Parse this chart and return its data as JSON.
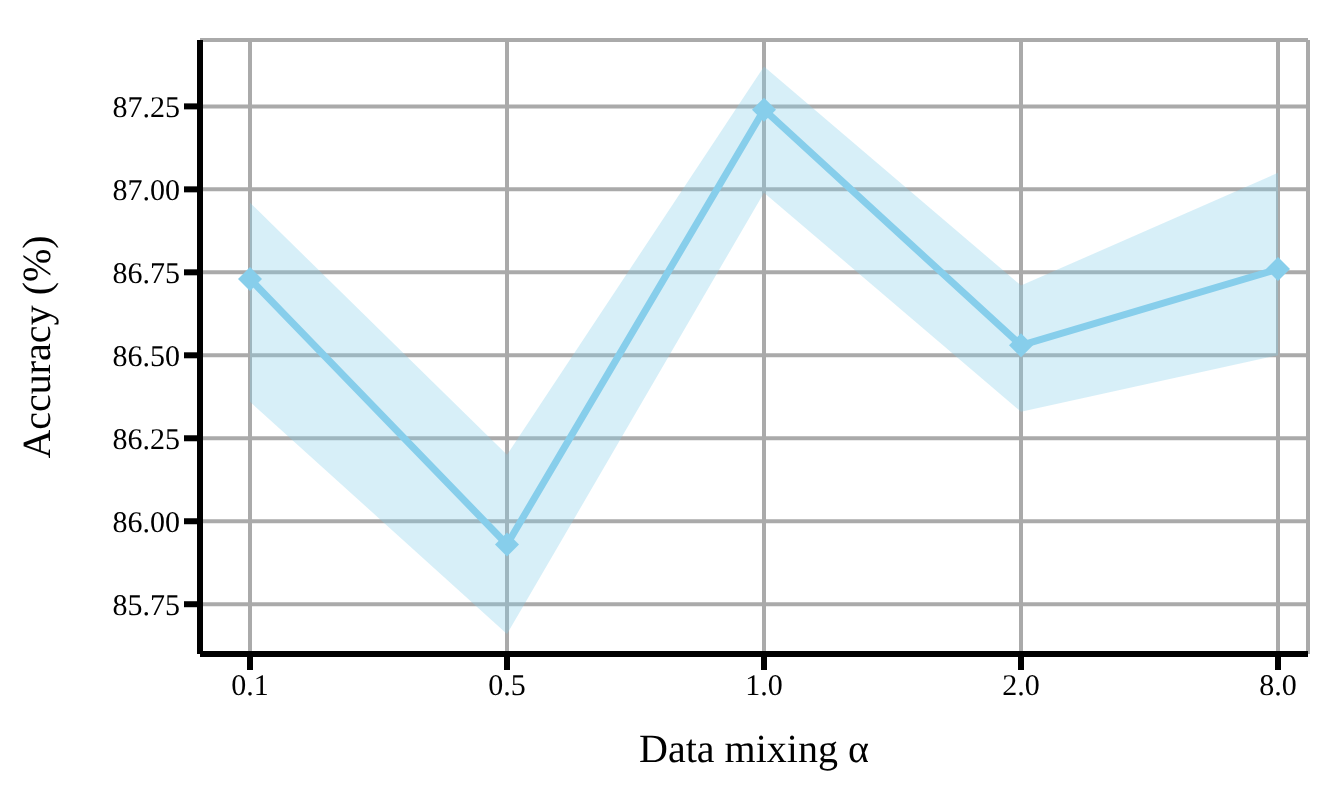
{
  "chart_data": {
    "type": "line",
    "xlabel": "Data mixing α",
    "ylabel": "Accuracy (%)",
    "categories": [
      "0.1",
      "0.5",
      "1.0",
      "2.0",
      "8.0"
    ],
    "series": [
      {
        "color": "#87ceeb",
        "values": [
          86.73,
          85.93,
          87.24,
          86.53,
          86.76
        ],
        "lower": [
          86.36,
          85.66,
          86.99,
          86.33,
          86.5
        ],
        "upper": [
          86.96,
          86.2,
          87.37,
          86.71,
          87.05
        ]
      }
    ],
    "ylim": [
      85.6,
      87.45
    ],
    "yticks": [
      85.75,
      {
        "value": 86,
        "label": "86.00"
      },
      86.25,
      {
        "value": 86.5,
        "label": "86.50"
      },
      86.75,
      {
        "value": 87,
        "label": "87.00"
      },
      87.25
    ],
    "grid": true,
    "marker": "diamond",
    "line_style": "solid"
  }
}
